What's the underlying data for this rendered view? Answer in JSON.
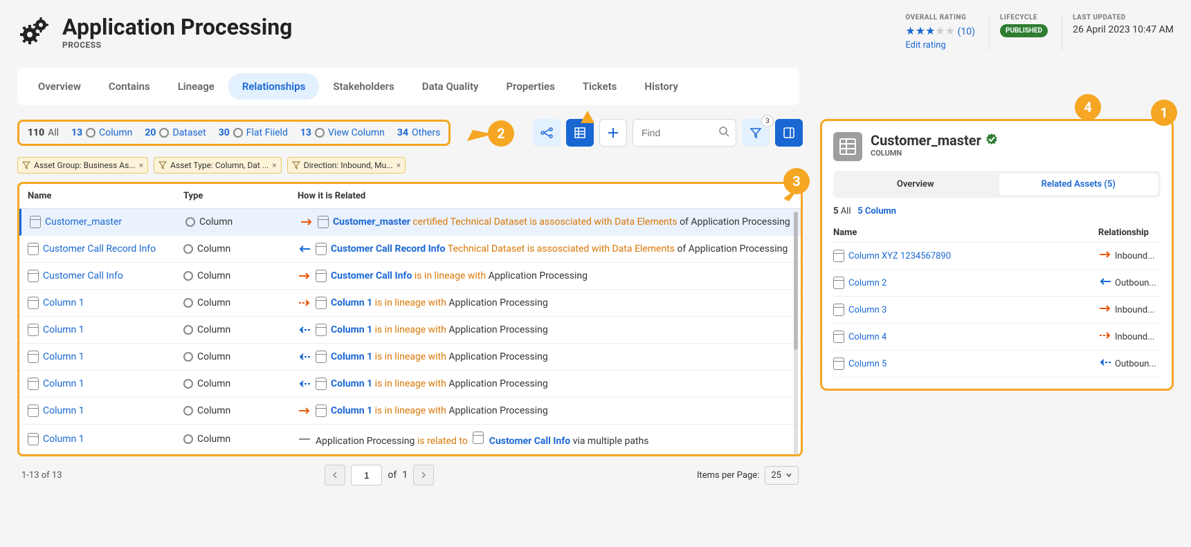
{
  "header": {
    "title": "Application Processing",
    "subtitle": "PROCESS",
    "rating": {
      "label": "OVERALL RATING",
      "filled": 3,
      "total": 5,
      "count": "(10)",
      "edit": "Edit rating"
    },
    "lifecycle": {
      "label": "LIFECYCLE",
      "badge": "PUBLISHED"
    },
    "updated": {
      "label": "LAST UPDATED",
      "date": "26 April 2023",
      "time": "10:47 AM"
    }
  },
  "tabs": [
    "Overview",
    "Contains",
    "Lineage",
    "Relationships",
    "Stakeholders",
    "Data Quality",
    "Properties",
    "Tickets",
    "History"
  ],
  "activeTab": "Relationships",
  "filterCounts": [
    {
      "n": "110",
      "label": "All",
      "allStyle": true
    },
    {
      "n": "13",
      "label": "Column",
      "radio": true
    },
    {
      "n": "20",
      "label": "Dataset",
      "radio": true
    },
    {
      "n": "30",
      "label": "Flat Fiield",
      "radio": true
    },
    {
      "n": "13",
      "label": "View Column",
      "radio": true
    },
    {
      "n": "34",
      "label": "Others"
    }
  ],
  "find": {
    "placeholder": "Find"
  },
  "filterBadge": "3",
  "chips": [
    "Asset Group: Business As...",
    "Asset Type: Column, Dat ...",
    "Direction: Inbound, Mu..."
  ],
  "tableHead": {
    "name": "Name",
    "type": "Type",
    "rel": "How it is Related"
  },
  "rows": [
    {
      "name": "Customer_master",
      "type": "Column",
      "arrow": "right-orange",
      "selected": true,
      "rel": [
        {
          "t": "Customer_master",
          "c": "blue"
        },
        {
          "t": "certified Technical Dataset is assosciated with Data Elements",
          "c": "orange"
        },
        {
          "t": "of Application Processing",
          "c": "plain"
        }
      ]
    },
    {
      "name": "Customer Call Record Info",
      "type": "Column",
      "arrow": "left-blue",
      "rel": [
        {
          "t": "Customer Call Record Info",
          "c": "blue"
        },
        {
          "t": "Technical Dataset is assosciated with Data Elements",
          "c": "orange"
        },
        {
          "t": "of Application Processing",
          "c": "plain"
        }
      ]
    },
    {
      "name": "Customer Call Info",
      "type": "Column",
      "arrow": "right-orange",
      "rel": [
        {
          "t": "Customer Call Info",
          "c": "blue"
        },
        {
          "t": "is in lineage with",
          "c": "orange"
        },
        {
          "t": "Application Processing",
          "c": "plain"
        }
      ]
    },
    {
      "name": "Column 1",
      "type": "Column",
      "arrow": "right-orange-dash",
      "rel": [
        {
          "t": "Column 1",
          "c": "blue"
        },
        {
          "t": "is in lineage with",
          "c": "orange"
        },
        {
          "t": "Application Processing",
          "c": "plain"
        }
      ]
    },
    {
      "name": "Column 1",
      "type": "Column",
      "arrow": "left-blue-dash",
      "rel": [
        {
          "t": "Column 1",
          "c": "blue"
        },
        {
          "t": "is in lineage with",
          "c": "orange"
        },
        {
          "t": "Application Processing",
          "c": "plain"
        }
      ]
    },
    {
      "name": "Column 1",
      "type": "Column",
      "arrow": "left-blue-dash",
      "rel": [
        {
          "t": "Column 1",
          "c": "blue"
        },
        {
          "t": "is in lineage with",
          "c": "orange"
        },
        {
          "t": "Application Processing",
          "c": "plain"
        }
      ]
    },
    {
      "name": "Column 1",
      "type": "Column",
      "arrow": "left-blue-dash",
      "rel": [
        {
          "t": "Column 1",
          "c": "blue"
        },
        {
          "t": "is in lineage with",
          "c": "orange"
        },
        {
          "t": "Application Processing",
          "c": "plain"
        }
      ]
    },
    {
      "name": "Column 1",
      "type": "Column",
      "arrow": "right-orange",
      "rel": [
        {
          "t": "Column 1",
          "c": "blue"
        },
        {
          "t": "is in lineage with",
          "c": "orange"
        },
        {
          "t": "Application Processing",
          "c": "plain"
        }
      ]
    },
    {
      "name": "Column 1",
      "type": "Column",
      "arrow": "line",
      "rel": [
        {
          "t": "Application Processing",
          "c": "plain"
        },
        {
          "t": "is related to",
          "c": "orange"
        },
        {
          "t": "__icon__",
          "c": "icon"
        },
        {
          "t": "Customer Call Info",
          "c": "blue"
        },
        {
          "t": "via multiple paths",
          "c": "plain"
        }
      ]
    }
  ],
  "pagination": {
    "summary": "1-13 of 13",
    "page": "1",
    "of": "of",
    "total": "1",
    "ipp_label": "Items per Page:",
    "ipp": "25"
  },
  "rightPanel": {
    "title": "Customer_master",
    "subtitle": "COLUMN",
    "tabs": {
      "overview": "Overview",
      "related": "Related Assets (5)"
    },
    "filter": {
      "allN": "5",
      "allL": "All",
      "colN": "5",
      "colL": "Column"
    },
    "head": {
      "name": "Name",
      "rel": "Relationship"
    },
    "rows": [
      {
        "name": "Column XYZ 1234567890",
        "arrow": "right-orange",
        "rel": "Inbound..."
      },
      {
        "name": "Column 2",
        "arrow": "left-blue",
        "rel": "Outboun..."
      },
      {
        "name": "Column 3",
        "arrow": "right-orange",
        "rel": "Inbound..."
      },
      {
        "name": "Column 4",
        "arrow": "right-orange-dash",
        "rel": "Inbound..."
      },
      {
        "name": "Column 5",
        "arrow": "left-blue-dash",
        "rel": "Outboun..."
      }
    ]
  },
  "callouts": {
    "c1": "1",
    "c2": "2",
    "c3": "3",
    "c4": "4"
  },
  "colors": {
    "accent": "#1967d2",
    "warn": "#f5a623",
    "orange_text": "#d97706",
    "published": "#2e7d32"
  }
}
